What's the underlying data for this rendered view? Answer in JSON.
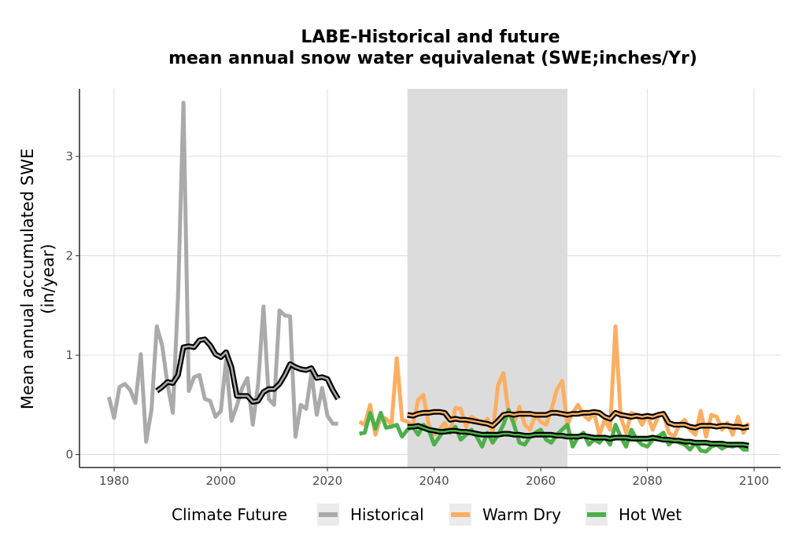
{
  "chart_data": {
    "type": "line",
    "title": "LABE-Historical and future",
    "subtitle": "mean annual snow water equivalenat (SWE;inches/Yr)",
    "xlabel": "",
    "ylabel": "Mean annual accumulated SWE",
    "ylabel2": "(in/year)",
    "xlim": [
      1973.5,
      2105
    ],
    "ylim": [
      -0.13,
      3.68
    ],
    "x_ticks": [
      1980,
      2000,
      2020,
      2040,
      2060,
      2080,
      2100
    ],
    "y_ticks": [
      0,
      1,
      2,
      3
    ],
    "grid": true,
    "shaded_region": {
      "x0": 2035,
      "x1": 2065,
      "color": "#dcdcdc"
    },
    "legend": {
      "title": "Climate Future",
      "placement": "bottom",
      "entries": [
        {
          "name": "Historical",
          "color": "#aaaaaa"
        },
        {
          "name": "Warm Dry",
          "color": "#fdae61"
        },
        {
          "name": "Hot Wet",
          "color": "#4daf4a"
        }
      ]
    },
    "series": [
      {
        "name": "Historical",
        "color": "#aaaaaa",
        "x": [
          1979,
          1980,
          1981,
          1982,
          1983,
          1984,
          1985,
          1986,
          1987,
          1988,
          1989,
          1990,
          1991,
          1992,
          1993,
          1994,
          1995,
          1996,
          1997,
          1998,
          1999,
          2000,
          2001,
          2002,
          2003,
          2004,
          2005,
          2006,
          2007,
          2008,
          2009,
          2010,
          2011,
          2012,
          2013,
          2014,
          2015,
          2016,
          2017,
          2018,
          2019,
          2020,
          2021,
          2022
        ],
        "values": [
          0.58,
          0.37,
          0.68,
          0.71,
          0.65,
          0.52,
          1.01,
          0.13,
          0.45,
          1.29,
          1.1,
          0.71,
          0.42,
          1.61,
          3.54,
          0.64,
          0.78,
          0.8,
          0.56,
          0.54,
          0.38,
          0.44,
          0.95,
          0.34,
          0.49,
          0.67,
          0.77,
          0.3,
          0.71,
          1.49,
          0.56,
          0.5,
          1.45,
          1.4,
          1.39,
          0.18,
          0.5,
          0.46,
          0.82,
          0.4,
          0.67,
          0.39,
          0.31,
          0.31
        ]
      },
      {
        "name": "Warm Dry",
        "color": "#fdae61",
        "x": [
          2026,
          2027,
          2028,
          2029,
          2030,
          2031,
          2032,
          2033,
          2034,
          2035,
          2036,
          2037,
          2038,
          2039,
          2040,
          2041,
          2042,
          2043,
          2044,
          2045,
          2046,
          2047,
          2048,
          2049,
          2050,
          2051,
          2052,
          2053,
          2054,
          2055,
          2056,
          2057,
          2058,
          2059,
          2060,
          2061,
          2062,
          2063,
          2064,
          2065,
          2066,
          2067,
          2068,
          2069,
          2070,
          2071,
          2072,
          2073,
          2074,
          2075,
          2076,
          2077,
          2078,
          2079,
          2080,
          2081,
          2082,
          2083,
          2084,
          2085,
          2086,
          2087,
          2088,
          2089,
          2090,
          2091,
          2092,
          2093,
          2094,
          2095,
          2096,
          2097,
          2098,
          2099
        ],
        "values": [
          0.33,
          0.3,
          0.5,
          0.2,
          0.38,
          0.36,
          0.3,
          0.97,
          0.35,
          0.33,
          0.28,
          0.55,
          0.6,
          0.3,
          0.2,
          0.25,
          0.32,
          0.22,
          0.47,
          0.46,
          0.28,
          0.38,
          0.35,
          0.3,
          0.36,
          0.22,
          0.7,
          0.82,
          0.4,
          0.32,
          0.48,
          0.3,
          0.25,
          0.4,
          0.33,
          0.3,
          0.45,
          0.65,
          0.74,
          0.3,
          0.42,
          0.5,
          0.4,
          0.35,
          0.42,
          0.2,
          0.35,
          0.25,
          1.29,
          0.38,
          0.22,
          0.42,
          0.4,
          0.3,
          0.4,
          0.25,
          0.38,
          0.42,
          0.22,
          0.18,
          0.3,
          0.35,
          0.25,
          0.2,
          0.44,
          0.18,
          0.4,
          0.38,
          0.25,
          0.32,
          0.2,
          0.38,
          0.22,
          0.32
        ]
      },
      {
        "name": "Hot Wet",
        "color": "#4daf4a",
        "x": [
          2026,
          2027,
          2028,
          2029,
          2030,
          2031,
          2032,
          2033,
          2034,
          2035,
          2036,
          2037,
          2038,
          2039,
          2040,
          2041,
          2042,
          2043,
          2044,
          2045,
          2046,
          2047,
          2048,
          2049,
          2050,
          2051,
          2052,
          2053,
          2054,
          2055,
          2056,
          2057,
          2058,
          2059,
          2060,
          2061,
          2062,
          2063,
          2064,
          2065,
          2066,
          2067,
          2068,
          2069,
          2070,
          2071,
          2072,
          2073,
          2074,
          2075,
          2076,
          2077,
          2078,
          2079,
          2080,
          2081,
          2082,
          2083,
          2084,
          2085,
          2086,
          2087,
          2088,
          2089,
          2090,
          2091,
          2092,
          2093,
          2094,
          2095,
          2096,
          2097,
          2098,
          2099
        ],
        "values": [
          0.21,
          0.22,
          0.42,
          0.26,
          0.42,
          0.27,
          0.28,
          0.3,
          0.18,
          0.25,
          0.28,
          0.2,
          0.3,
          0.25,
          0.1,
          0.18,
          0.25,
          0.22,
          0.28,
          0.15,
          0.2,
          0.25,
          0.18,
          0.08,
          0.22,
          0.12,
          0.2,
          0.3,
          0.45,
          0.3,
          0.12,
          0.1,
          0.18,
          0.22,
          0.25,
          0.15,
          0.12,
          0.2,
          0.25,
          0.3,
          0.08,
          0.18,
          0.22,
          0.1,
          0.15,
          0.12,
          0.18,
          0.1,
          0.3,
          0.18,
          0.08,
          0.25,
          0.15,
          0.1,
          0.08,
          0.15,
          0.18,
          0.22,
          0.1,
          0.15,
          0.12,
          0.1,
          0.05,
          0.12,
          0.04,
          0.03,
          0.08,
          0.1,
          0.06,
          0.09,
          0.08,
          0.1,
          0.05,
          0.05
        ]
      }
    ],
    "moving_averages": [
      {
        "series": "Historical",
        "color": "#000000",
        "x": [
          1988,
          1989,
          1990,
          1991,
          1992,
          1993,
          1994,
          1995,
          1996,
          1997,
          1998,
          1999,
          2000,
          2001,
          2002,
          2003,
          2004,
          2005,
          2006,
          2007,
          2008,
          2009,
          2010,
          2011,
          2012,
          2013,
          2014,
          2015,
          2016,
          2017,
          2018,
          2019,
          2020,
          2021,
          2022
        ],
        "values": [
          0.64,
          0.68,
          0.73,
          0.72,
          0.8,
          1.08,
          1.09,
          1.08,
          1.15,
          1.16,
          1.1,
          1.01,
          0.98,
          1.03,
          0.88,
          0.59,
          0.59,
          0.59,
          0.53,
          0.54,
          0.63,
          0.66,
          0.66,
          0.71,
          0.8,
          0.91,
          0.88,
          0.86,
          0.85,
          0.87,
          0.77,
          0.78,
          0.76,
          0.65,
          0.56
        ]
      },
      {
        "series": "Warm Dry",
        "color": "#000000",
        "x": [
          2035,
          2036,
          2037,
          2038,
          2039,
          2040,
          2041,
          2042,
          2043,
          2044,
          2045,
          2046,
          2047,
          2048,
          2049,
          2050,
          2051,
          2052,
          2053,
          2054,
          2055,
          2056,
          2057,
          2058,
          2059,
          2060,
          2061,
          2062,
          2063,
          2064,
          2065,
          2066,
          2067,
          2068,
          2069,
          2070,
          2071,
          2072,
          2073,
          2074,
          2075,
          2076,
          2077,
          2078,
          2079,
          2080,
          2081,
          2082,
          2083,
          2084,
          2085,
          2086,
          2087,
          2088,
          2089,
          2090,
          2091,
          2092,
          2093,
          2094,
          2095,
          2096,
          2097,
          2098,
          2099
        ],
        "values": [
          0.4,
          0.39,
          0.41,
          0.42,
          0.42,
          0.43,
          0.43,
          0.42,
          0.35,
          0.36,
          0.35,
          0.35,
          0.34,
          0.33,
          0.32,
          0.31,
          0.29,
          0.34,
          0.4,
          0.41,
          0.4,
          0.41,
          0.41,
          0.41,
          0.4,
          0.4,
          0.4,
          0.42,
          0.42,
          0.41,
          0.4,
          0.41,
          0.41,
          0.42,
          0.42,
          0.43,
          0.42,
          0.38,
          0.36,
          0.42,
          0.4,
          0.39,
          0.38,
          0.39,
          0.38,
          0.39,
          0.38,
          0.4,
          0.41,
          0.32,
          0.3,
          0.3,
          0.3,
          0.28,
          0.27,
          0.29,
          0.29,
          0.29,
          0.28,
          0.29,
          0.29,
          0.28,
          0.28,
          0.27,
          0.28
        ]
      },
      {
        "series": "Hot Wet",
        "color": "#000000",
        "x": [
          2035,
          2036,
          2037,
          2038,
          2039,
          2040,
          2041,
          2042,
          2043,
          2044,
          2045,
          2046,
          2047,
          2048,
          2049,
          2050,
          2051,
          2052,
          2053,
          2054,
          2055,
          2056,
          2057,
          2058,
          2059,
          2060,
          2061,
          2062,
          2063,
          2064,
          2065,
          2066,
          2067,
          2068,
          2069,
          2070,
          2071,
          2072,
          2073,
          2074,
          2075,
          2076,
          2077,
          2078,
          2079,
          2080,
          2081,
          2082,
          2083,
          2084,
          2085,
          2086,
          2087,
          2088,
          2089,
          2090,
          2091,
          2092,
          2093,
          2094,
          2095,
          2096,
          2097,
          2098,
          2099
        ],
        "values": [
          0.28,
          0.28,
          0.29,
          0.27,
          0.25,
          0.24,
          0.23,
          0.23,
          0.24,
          0.24,
          0.23,
          0.23,
          0.22,
          0.21,
          0.2,
          0.2,
          0.2,
          0.2,
          0.21,
          0.21,
          0.2,
          0.2,
          0.19,
          0.19,
          0.2,
          0.2,
          0.2,
          0.2,
          0.19,
          0.19,
          0.18,
          0.18,
          0.18,
          0.19,
          0.18,
          0.17,
          0.17,
          0.17,
          0.16,
          0.17,
          0.17,
          0.17,
          0.16,
          0.16,
          0.16,
          0.16,
          0.17,
          0.16,
          0.15,
          0.15,
          0.14,
          0.14,
          0.13,
          0.13,
          0.12,
          0.12,
          0.12,
          0.11,
          0.11,
          0.11,
          0.1,
          0.1,
          0.1,
          0.1,
          0.09
        ]
      }
    ]
  }
}
